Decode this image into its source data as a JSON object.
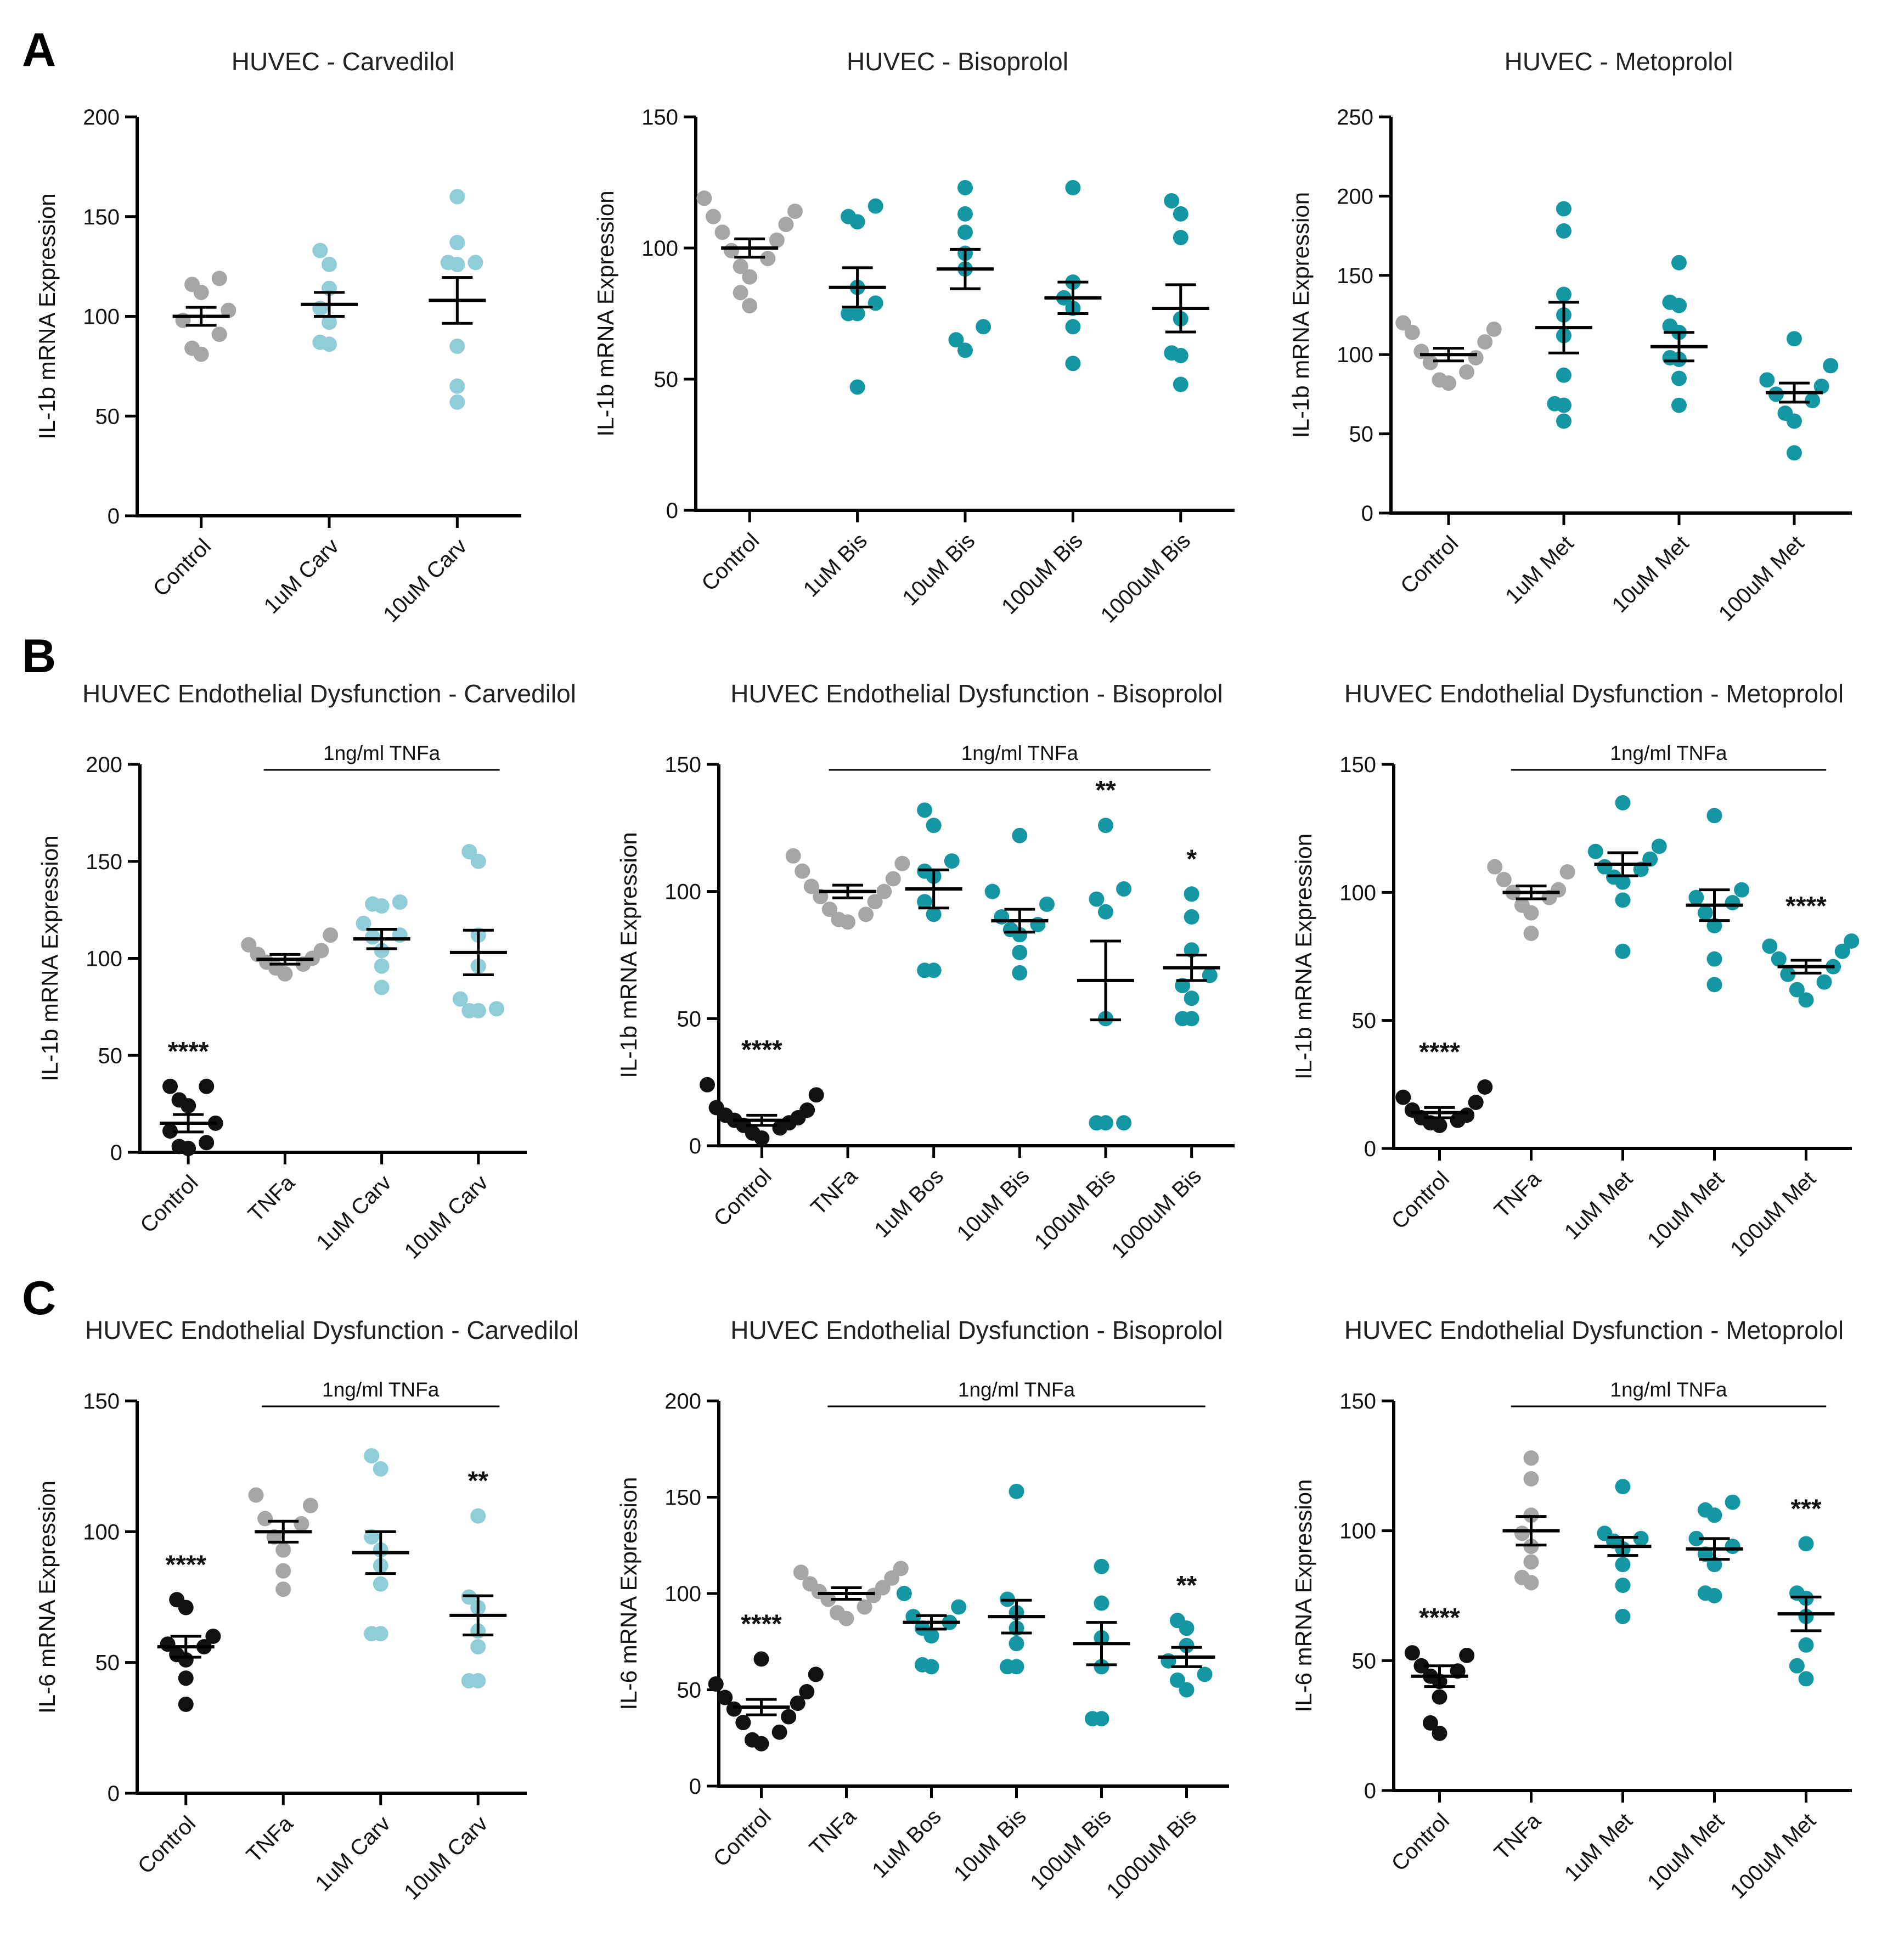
{
  "colors": {
    "control": "#111111",
    "reference": "#a6a6a6",
    "carvedilol": "#8fcdd8",
    "teal": "#1497a2"
  },
  "panels": [
    "A",
    "B",
    "C"
  ],
  "chart_data": [
    {
      "type": "scatter",
      "panel": "A",
      "title": "HUVEC - Carvedilol",
      "ylabel": "IL-1b mRNA Expression",
      "ylim": [
        0,
        200
      ],
      "yticks": [
        0,
        50,
        100,
        150,
        200
      ],
      "categories": [
        "Control",
        "1uM Carv",
        "10uM Carv"
      ],
      "colors": [
        "reference",
        "carvedilol",
        "carvedilol"
      ],
      "points": [
        [
          81,
          84,
          91,
          98,
          103,
          112,
          116,
          119
        ],
        [
          86,
          87,
          97,
          104,
          114,
          126,
          133
        ],
        [
          57,
          65,
          85,
          126,
          127,
          127,
          137,
          160
        ]
      ],
      "mean": [
        100,
        106,
        108
      ],
      "sem": [
        4.5,
        6,
        11.5
      ],
      "significance": [
        "",
        "",
        ""
      ],
      "bracket": null
    },
    {
      "type": "scatter",
      "panel": "A",
      "title": "HUVEC - Bisoprolol",
      "ylabel": "IL-1b mRNA Expression",
      "ylim": [
        0,
        150
      ],
      "yticks": [
        0,
        50,
        100,
        150
      ],
      "categories": [
        "Control",
        "1uM Bis",
        "10uM Bis",
        "100uM Bis",
        "1000uM Bis"
      ],
      "colors": [
        "reference",
        "teal",
        "teal",
        "teal",
        "teal"
      ],
      "points": [
        [
          78,
          83,
          89,
          93,
          96,
          99,
          103,
          106,
          109,
          112,
          114,
          119
        ],
        [
          47,
          75,
          75,
          79,
          85,
          110,
          112,
          116
        ],
        [
          61,
          65,
          70,
          92,
          98,
          106,
          113,
          123
        ],
        [
          56,
          70,
          77,
          81,
          87,
          123
        ],
        [
          48,
          59,
          60,
          73,
          104,
          113,
          118
        ]
      ],
      "mean": [
        100,
        85,
        92,
        81,
        77
      ],
      "sem": [
        3.5,
        7.5,
        7.5,
        6,
        9
      ],
      "significance": [
        "",
        "",
        "",
        "",
        ""
      ],
      "bracket": null
    },
    {
      "type": "scatter",
      "panel": "A",
      "title": "HUVEC - Metoprolol",
      "ylabel": "IL-1b mRNA Expression",
      "ylim": [
        0,
        250
      ],
      "yticks": [
        0,
        50,
        100,
        150,
        200,
        250
      ],
      "categories": [
        "Control",
        "1uM Met",
        "10uM Met",
        "100uM Met"
      ],
      "colors": [
        "reference",
        "teal",
        "teal",
        "teal"
      ],
      "points": [
        [
          82,
          84,
          89,
          95,
          98,
          102,
          108,
          114,
          116,
          120
        ],
        [
          58,
          68,
          69,
          87,
          112,
          125,
          138,
          178,
          192
        ],
        [
          68,
          85,
          97,
          98,
          114,
          118,
          131,
          133,
          158
        ],
        [
          38,
          58,
          63,
          71,
          75,
          80,
          84,
          93,
          110
        ]
      ],
      "mean": [
        100,
        117,
        105,
        76
      ],
      "sem": [
        4,
        16,
        9,
        6
      ],
      "significance": [
        "",
        "",
        "",
        ""
      ],
      "bracket": null
    },
    {
      "type": "scatter",
      "panel": "B",
      "title": "HUVEC Endothelial Dysfunction - Carvedilol",
      "ylabel": "IL-1b mRNA Expression",
      "ylim": [
        0,
        200
      ],
      "yticks": [
        0,
        50,
        100,
        150,
        200
      ],
      "categories": [
        "Control",
        "TNFa",
        "1uM Carv",
        "10uM Carv"
      ],
      "colors": [
        "control",
        "reference",
        "carvedilol",
        "carvedilol"
      ],
      "points": [
        [
          2,
          3,
          5,
          11,
          15,
          24,
          27,
          34,
          34
        ],
        [
          92,
          95,
          97,
          98,
          100,
          102,
          104,
          107,
          112
        ],
        [
          85,
          96,
          104,
          111,
          112,
          118,
          127,
          128,
          129
        ],
        [
          73,
          73,
          74,
          79,
          96,
          112,
          150,
          155
        ]
      ],
      "mean": [
        15,
        99.5,
        110,
        103
      ],
      "sem": [
        4.5,
        2.5,
        5,
        11.5
      ],
      "significance": [
        "****",
        "",
        "",
        ""
      ],
      "bracket": {
        "label": "1ng/ml TNFa",
        "from": 1,
        "to": 3
      }
    },
    {
      "type": "scatter",
      "panel": "B",
      "title": "HUVEC Endothelial Dysfunction - Bisoprolol",
      "ylabel": "IL-1b mRNA Expression",
      "ylim": [
        0,
        150
      ],
      "yticks": [
        0,
        50,
        100,
        150
      ],
      "categories": [
        "Control",
        "TNFa",
        "1uM Bos",
        "10uM Bis",
        "100uM Bis",
        "1000uM Bis"
      ],
      "colors": [
        "control",
        "reference",
        "teal",
        "teal",
        "teal",
        "teal"
      ],
      "points": [
        [
          3,
          5,
          7,
          8,
          9,
          10,
          11,
          12,
          14,
          15,
          20,
          24
        ],
        [
          88,
          89,
          91,
          93,
          96,
          98,
          100,
          102,
          105,
          108,
          111,
          114
        ],
        [
          69,
          69,
          91,
          96,
          106,
          108,
          112,
          126,
          132
        ],
        [
          68,
          76,
          83,
          85,
          87,
          90,
          95,
          100,
          122
        ],
        [
          9,
          9,
          9,
          50,
          92,
          97,
          101,
          126
        ],
        [
          50,
          50,
          58,
          63,
          67,
          77,
          90,
          99
        ]
      ],
      "mean": [
        10,
        100,
        101,
        88.5,
        65,
        70
      ],
      "sem": [
        2,
        2.5,
        7.5,
        4.5,
        15.5,
        5
      ],
      "significance": [
        "****",
        "",
        "",
        "",
        "**",
        "*"
      ],
      "bracket": {
        "label": "1ng/ml TNFa",
        "from": 1,
        "to": 5
      }
    },
    {
      "type": "scatter",
      "panel": "B",
      "title": "HUVEC Endothelial Dysfunction - Metoprolol",
      "ylabel": "IL-1b mRNA Expression",
      "ylim": [
        0,
        150
      ],
      "yticks": [
        0,
        50,
        100,
        150
      ],
      "categories": [
        "Control",
        "TNFa",
        "1uM Met",
        "10uM Met",
        "100uM Met"
      ],
      "colors": [
        "control",
        "reference",
        "teal",
        "teal",
        "teal"
      ],
      "points": [
        [
          9,
          10,
          11,
          12,
          13,
          15,
          18,
          20,
          24
        ],
        [
          84,
          92,
          95,
          98,
          100,
          101,
          105,
          108,
          110
        ],
        [
          77,
          97,
          104,
          106,
          109,
          110,
          113,
          116,
          118,
          135
        ],
        [
          64,
          74,
          87,
          92,
          96,
          98,
          101,
          130
        ],
        [
          58,
          62,
          65,
          68,
          71,
          74,
          77,
          79,
          81
        ]
      ],
      "mean": [
        14,
        100,
        111,
        95,
        71
      ],
      "sem": [
        2,
        2.5,
        4.5,
        6,
        2.5
      ],
      "significance": [
        "****",
        "",
        "",
        "",
        "****"
      ],
      "bracket": {
        "label": "1ng/ml TNFa",
        "from": 1,
        "to": 4
      }
    },
    {
      "type": "scatter",
      "panel": "C",
      "title": "HUVEC Endothelial Dysfunction - Carvedilol",
      "ylabel": "IL-6 mRNA Expression",
      "ylim": [
        0,
        150
      ],
      "yticks": [
        0,
        50,
        100,
        150
      ],
      "categories": [
        "Control",
        "TNFa",
        "1uM Carv",
        "10uM Carv"
      ],
      "colors": [
        "control",
        "reference",
        "carvedilol",
        "carvedilol"
      ],
      "points": [
        [
          34,
          44,
          51,
          53,
          56,
          57,
          60,
          71,
          74
        ],
        [
          78,
          85,
          93,
          98,
          103,
          105,
          110,
          114
        ],
        [
          61,
          61,
          80,
          87,
          93,
          98,
          124,
          129
        ],
        [
          43,
          43,
          56,
          62,
          71,
          75,
          106
        ]
      ],
      "mean": [
        56,
        100,
        92,
        68
      ],
      "sem": [
        4,
        4,
        8,
        7.5
      ],
      "significance": [
        "****",
        "",
        "",
        "**"
      ],
      "bracket": {
        "label": "1ng/ml TNFa",
        "from": 1,
        "to": 3
      }
    },
    {
      "type": "scatter",
      "panel": "C",
      "title": "HUVEC Endothelial Dysfunction - Bisoprolol",
      "ylabel": "IL-6 mRNA Expression",
      "ylim": [
        0,
        200
      ],
      "yticks": [
        0,
        50,
        100,
        150,
        200
      ],
      "categories": [
        "Control",
        "TNFa",
        "1uM Bos",
        "10uM Bis",
        "100uM Bis",
        "1000uM Bis"
      ],
      "colors": [
        "control",
        "reference",
        "teal",
        "teal",
        "teal",
        "teal"
      ],
      "points": [
        [
          22,
          24,
          28,
          33,
          36,
          40,
          43,
          46,
          49,
          53,
          58,
          66
        ],
        [
          87,
          90,
          93,
          97,
          99,
          101,
          103,
          105,
          108,
          111,
          113
        ],
        [
          62,
          63,
          78,
          82,
          85,
          88,
          93,
          100
        ],
        [
          62,
          62,
          74,
          82,
          90,
          97,
          153
        ],
        [
          35,
          35,
          62,
          77,
          95,
          114
        ],
        [
          50,
          55,
          58,
          65,
          73,
          82,
          86
        ]
      ],
      "mean": [
        41,
        100,
        85,
        88,
        74,
        67
      ],
      "sem": [
        4,
        3,
        3.5,
        8.5,
        11,
        5
      ],
      "significance": [
        "****",
        "",
        "",
        "",
        "",
        "**"
      ],
      "bracket": {
        "label": "1ng/ml TNFa",
        "from": 1,
        "to": 5
      }
    },
    {
      "type": "scatter",
      "panel": "C",
      "title": "HUVEC Endothelial Dysfunction - Metoprolol",
      "ylabel": "IL-6 mRNA Expression",
      "ylim": [
        0,
        150
      ],
      "yticks": [
        0,
        50,
        100,
        150
      ],
      "categories": [
        "Control",
        "TNFa",
        "1uM Met",
        "10uM Met",
        "100uM Met"
      ],
      "colors": [
        "control",
        "reference",
        "teal",
        "teal",
        "teal"
      ],
      "points": [
        [
          22,
          26,
          36,
          42,
          44,
          46,
          48,
          52,
          53
        ],
        [
          80,
          82,
          88,
          94,
          99,
          106,
          120,
          128
        ],
        [
          67,
          79,
          87,
          93,
          96,
          97,
          99,
          117
        ],
        [
          75,
          76,
          87,
          91,
          94,
          97,
          106,
          108,
          111
        ],
        [
          43,
          48,
          56,
          67,
          74,
          76,
          95
        ]
      ],
      "mean": [
        44,
        100,
        94,
        93,
        68
      ],
      "sem": [
        4,
        5.5,
        3.5,
        4,
        6.5
      ],
      "significance": [
        "****",
        "",
        "",
        "",
        "***"
      ],
      "bracket": {
        "label": "1ng/ml TNFa",
        "from": 1,
        "to": 4
      }
    }
  ]
}
